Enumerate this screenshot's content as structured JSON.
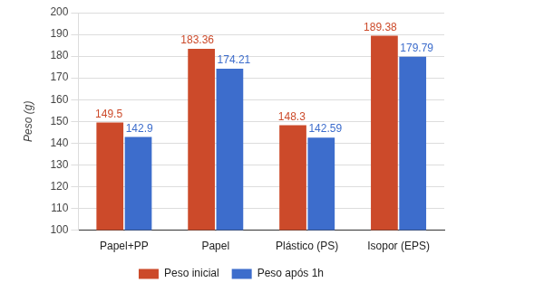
{
  "chart_data": {
    "type": "bar",
    "y_label": "Peso (g)",
    "categories": [
      "Papel+PP",
      "Papel",
      "Plástico (PS)",
      "Isopor (EPS)"
    ],
    "series": [
      {
        "name": "Peso inicial",
        "color": "#cc4a2a",
        "values": [
          149.5,
          183.36,
          148.3,
          189.38
        ]
      },
      {
        "name": "Peso após 1h",
        "color": "#3d6dcc",
        "values": [
          142.9,
          174.21,
          142.59,
          179.79
        ]
      }
    ],
    "ylim": [
      100,
      200
    ],
    "yticks": [
      100,
      110,
      120,
      130,
      140,
      150,
      160,
      170,
      180,
      190,
      200
    ],
    "grid": true,
    "legend": "bottom",
    "data_labels": true
  }
}
